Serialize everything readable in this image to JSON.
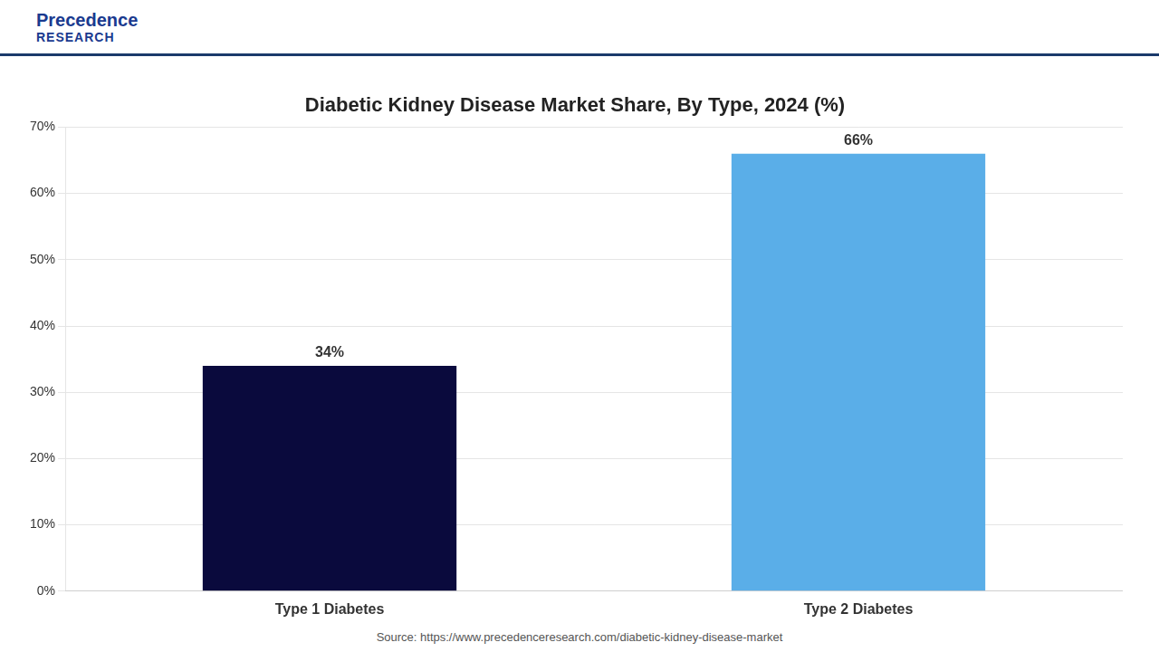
{
  "chart_data": {
    "type": "bar",
    "title": "Diabetic Kidney Disease Market Share, By Type, 2024 (%)",
    "categories": [
      "Type 1 Diabetes",
      "Type 2 Diabetes"
    ],
    "values": [
      34,
      66
    ],
    "value_labels": [
      "34%",
      "66%"
    ],
    "colors": [
      "#0a0a3d",
      "#5aaee8"
    ],
    "ylim": [
      0,
      70
    ],
    "yticks": [
      {
        "value": 0,
        "label": "0%"
      },
      {
        "value": 10,
        "label": "10%"
      },
      {
        "value": 20,
        "label": "20%"
      },
      {
        "value": 30,
        "label": "30%"
      },
      {
        "value": 40,
        "label": "40%"
      },
      {
        "value": 50,
        "label": "50%"
      },
      {
        "value": 60,
        "label": "60%"
      },
      {
        "value": 70,
        "label": "70%"
      }
    ],
    "grid": true,
    "data_labels": true,
    "annotations": [
      "Precedence",
      "RESEARCH",
      "Source: https://www.precedenceresearch.com/diabetic-kidney-disease-market"
    ]
  }
}
